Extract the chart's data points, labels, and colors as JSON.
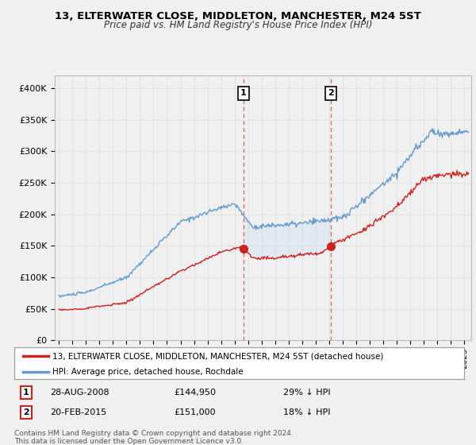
{
  "title": "13, ELTERWATER CLOSE, MIDDLETON, MANCHESTER, M24 5ST",
  "subtitle": "Price paid vs. HM Land Registry's House Price Index (HPI)",
  "ylabel_ticks": [
    "£0",
    "£50K",
    "£100K",
    "£150K",
    "£200K",
    "£250K",
    "£300K",
    "£350K",
    "£400K"
  ],
  "ytick_values": [
    0,
    50000,
    100000,
    150000,
    200000,
    250000,
    300000,
    350000,
    400000
  ],
  "ylim": [
    0,
    420000
  ],
  "xlim_start": 1994.7,
  "xlim_end": 2025.5,
  "legend_line1": "13, ELTERWATER CLOSE, MIDDLETON, MANCHESTER, M24 5ST (detached house)",
  "legend_line2": "HPI: Average price, detached house, Rochdale",
  "sale1_date": 2008.65,
  "sale1_price": 144950,
  "sale2_date": 2015.12,
  "sale2_price": 151000,
  "footer": "Contains HM Land Registry data © Crown copyright and database right 2024.\nThis data is licensed under the Open Government Licence v3.0.",
  "line_color_red": "#cc2222",
  "line_color_blue": "#6699cc",
  "fill_color_blue": "#c8ddf0",
  "bg_color": "#f0f0f0",
  "plot_bg": "#f0f0f0",
  "grid_color": "#dddddd",
  "dashed_color": "#dd4444"
}
